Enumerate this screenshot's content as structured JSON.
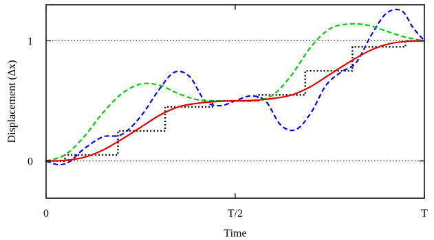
{
  "chart_data": {
    "type": "line",
    "xlabel": "Time",
    "ylabel": "Displacement (Δx)",
    "x_ticks": [
      {
        "value": 0,
        "label": "0"
      },
      {
        "value": 0.5,
        "label": "T/2"
      },
      {
        "value": 1,
        "label": "T"
      }
    ],
    "y_ticks": [
      {
        "value": 0,
        "label": "0"
      },
      {
        "value": 1,
        "label": "1"
      }
    ],
    "xlim": [
      0,
      1
    ],
    "ylim": [
      -0.31,
      1.3
    ],
    "gridlines": {
      "y_values": [
        0,
        1
      ],
      "style": "dotted"
    },
    "series": [
      {
        "color": "#000000",
        "dash": "dotted",
        "style": "step",
        "x": [
          0,
          0.05,
          0.05,
          0.19,
          0.19,
          0.315,
          0.315,
          0.44,
          0.44,
          0.56,
          0.56,
          0.685,
          0.685,
          0.81,
          0.81,
          0.95,
          0.95,
          1
        ],
        "y": [
          0,
          0,
          0.05,
          0.05,
          0.25,
          0.25,
          0.45,
          0.45,
          0.5,
          0.5,
          0.55,
          0.55,
          0.75,
          0.75,
          0.95,
          0.95,
          1,
          1
        ]
      },
      {
        "color": "#0000ff",
        "dash": "dashed",
        "x": [
          0,
          0.03,
          0.06,
          0.1,
          0.15,
          0.2,
          0.25,
          0.3,
          0.34,
          0.38,
          0.42,
          0.46,
          0.5,
          0.54,
          0.58,
          0.62,
          0.66,
          0.7,
          0.74,
          0.78,
          0.82,
          0.86,
          0.9,
          0.94,
          0.97,
          1
        ],
        "y": [
          0,
          -0.03,
          -0.01,
          0.1,
          0.2,
          0.22,
          0.37,
          0.6,
          0.74,
          0.7,
          0.5,
          0.46,
          0.5,
          0.54,
          0.5,
          0.3,
          0.26,
          0.4,
          0.63,
          0.74,
          0.82,
          1.05,
          1.23,
          1.25,
          1.11,
          1.0
        ]
      },
      {
        "color": "#00cc00",
        "dash": "dashed",
        "x": [
          0,
          0.05,
          0.1,
          0.15,
          0.2,
          0.25,
          0.3,
          0.35,
          0.4,
          0.45,
          0.5,
          0.55,
          0.6,
          0.65,
          0.7,
          0.75,
          0.8,
          0.85,
          0.9,
          0.95,
          1
        ],
        "y": [
          0,
          0.05,
          0.2,
          0.4,
          0.56,
          0.64,
          0.63,
          0.56,
          0.51,
          0.5,
          0.5,
          0.5,
          0.55,
          0.72,
          0.95,
          1.1,
          1.14,
          1.13,
          1.08,
          1.03,
          1.0
        ]
      },
      {
        "color": "#e00000",
        "dash": "solid",
        "x": [
          0,
          0.05,
          0.1,
          0.15,
          0.2,
          0.25,
          0.3,
          0.35,
          0.4,
          0.45,
          0.5,
          0.55,
          0.6,
          0.65,
          0.7,
          0.75,
          0.8,
          0.85,
          0.9,
          0.95,
          1
        ],
        "y": [
          0,
          0.005,
          0.03,
          0.09,
          0.18,
          0.28,
          0.38,
          0.45,
          0.48,
          0.495,
          0.5,
          0.505,
          0.52,
          0.55,
          0.62,
          0.72,
          0.82,
          0.91,
          0.97,
          0.995,
          1.0
        ]
      }
    ]
  }
}
